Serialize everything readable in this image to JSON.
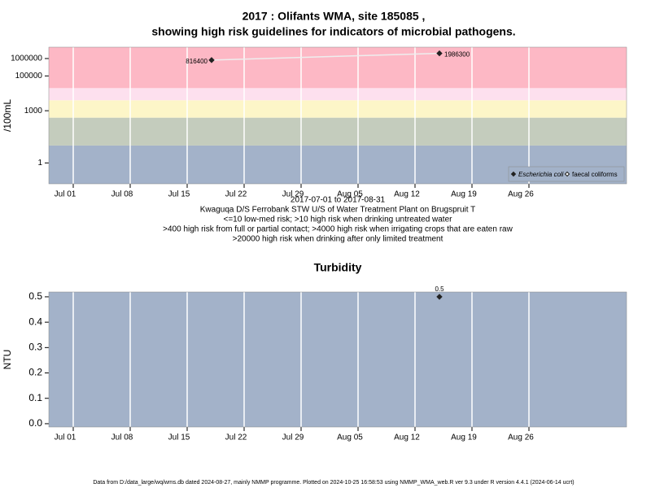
{
  "title": [
    "2017 : Olifants WMA, site 185085 ,",
    "showing high risk guidelines for indicators of microbial pathogens."
  ],
  "chart_data": [
    {
      "type": "line",
      "ylabel": "/100mL",
      "log_scale": true,
      "x": [
        "2017-07-18",
        "2017-08-15"
      ],
      "series": [
        {
          "name": "Escherichia coli",
          "color": "#222222",
          "line_color": "#eeeeee",
          "marker": "filled-diamond",
          "values": [
            816400,
            1986300
          ]
        },
        {
          "name": "faecal coliforms",
          "color": "#222222",
          "marker": "open-diamond",
          "values": [
            null,
            null
          ]
        }
      ],
      "xlim": [
        "2017-06-28",
        "2017-09-07"
      ],
      "xticks": [
        {
          "value": "2017-07-01",
          "label": "Jul 01"
        },
        {
          "value": "2017-07-08",
          "label": "Jul 08"
        },
        {
          "value": "2017-07-15",
          "label": "Jul 15"
        },
        {
          "value": "2017-07-22",
          "label": "Jul 22"
        },
        {
          "value": "2017-07-29",
          "label": "Jul 29"
        },
        {
          "value": "2017-08-05",
          "label": "Aug 05"
        },
        {
          "value": "2017-08-12",
          "label": "Aug 12"
        },
        {
          "value": "2017-08-19",
          "label": "Aug 19"
        },
        {
          "value": "2017-08-26",
          "label": "Aug 26"
        }
      ],
      "ylim": [
        0.063,
        4500000
      ],
      "yticks": [
        1,
        1000,
        100000,
        1000000
      ],
      "band_edges": [
        10,
        400,
        4000,
        20000
      ],
      "band_colors": [
        "#a3b2c9",
        "#c4ccbd",
        "#fdf6c8",
        "#fde0ee",
        "#fdb8c5"
      ],
      "grid": true,
      "legend": "lower right",
      "xlabel": "2017-07-01 to 2017-08-31",
      "notes": [
        "Kwaguqa D/S Ferrobank STW U/S of Water Treatment Plant on Brugspruit T",
        "<=10 low-med risk; >10 high risk when drinking untreated water",
        ">400 high risk from full or partial contact; >4000 high risk when irrigating crops that are eaten raw",
        ">20000 high risk when drinking after only limited treatment"
      ]
    },
    {
      "type": "scatter",
      "title": "Turbidity",
      "ylabel": "NTU",
      "x": [
        "2017-08-15"
      ],
      "series": [
        {
          "name": "Turbidity",
          "color": "#222222",
          "values": [
            0.5
          ]
        }
      ],
      "xlim": [
        "2017-06-28",
        "2017-09-07"
      ],
      "xticks": [
        {
          "value": "2017-07-01",
          "label": "Jul 01"
        },
        {
          "value": "2017-07-08",
          "label": "Jul 08"
        },
        {
          "value": "2017-07-15",
          "label": "Jul 15"
        },
        {
          "value": "2017-07-22",
          "label": "Jul 22"
        },
        {
          "value": "2017-07-29",
          "label": "Jul 29"
        },
        {
          "value": "2017-08-05",
          "label": "Aug 05"
        },
        {
          "value": "2017-08-12",
          "label": "Aug 12"
        },
        {
          "value": "2017-08-19",
          "label": "Aug 19"
        },
        {
          "value": "2017-08-26",
          "label": "Aug 26"
        }
      ],
      "ylim": [
        -0.013,
        0.519
      ],
      "yticks": [
        {
          "value": 0,
          "label": "0.0"
        },
        0.1,
        0.2,
        0.3,
        0.4,
        0.5
      ],
      "background": "#a3b2c9",
      "grid": true
    }
  ],
  "footer": "Data from D:/data_large/wq/wms.db dated 2024-08-27, mainly NMMP programme. Plotted on 2024-10-25 16:58:53 using NMMP_WMA_web.R ver 9.3 under R version 4.4.1 (2024-06-14 ucrt)"
}
